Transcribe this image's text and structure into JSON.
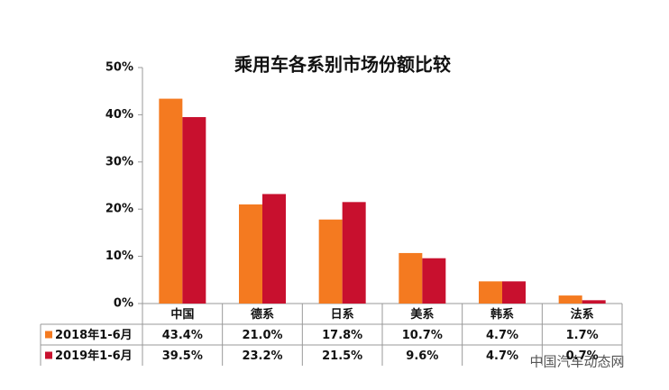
{
  "chart_data": {
    "type": "bar",
    "title": "乘用车各系别市场份额比较",
    "categories": [
      "中国",
      "德系",
      "日系",
      "美系",
      "韩系",
      "法系"
    ],
    "series": [
      {
        "name": "2018年1-6月",
        "color": "#f47a20",
        "values": [
          43.4,
          21.0,
          17.8,
          10.7,
          4.7,
          1.7
        ],
        "value_labels": [
          "43.4%",
          "21.0%",
          "17.8%",
          "10.7%",
          "4.7%",
          "1.7%"
        ]
      },
      {
        "name": "2019年1-6月",
        "color": "#c8102e",
        "values": [
          39.5,
          23.2,
          21.5,
          9.6,
          4.7,
          0.7
        ],
        "value_labels": [
          "39.5%",
          "23.2%",
          "21.5%",
          "9.6%",
          "4.7%",
          "0.7%"
        ]
      }
    ],
    "ylim": [
      0,
      50
    ],
    "yticks": [
      {
        "value": 0,
        "label": "0%"
      },
      {
        "value": 10,
        "label": "10%"
      },
      {
        "value": 20,
        "label": "20%"
      },
      {
        "value": 30,
        "label": "30%"
      },
      {
        "value": 40,
        "label": "40%"
      },
      {
        "value": 50,
        "label": "50%"
      }
    ],
    "watermark": "中国汽车动态网"
  }
}
